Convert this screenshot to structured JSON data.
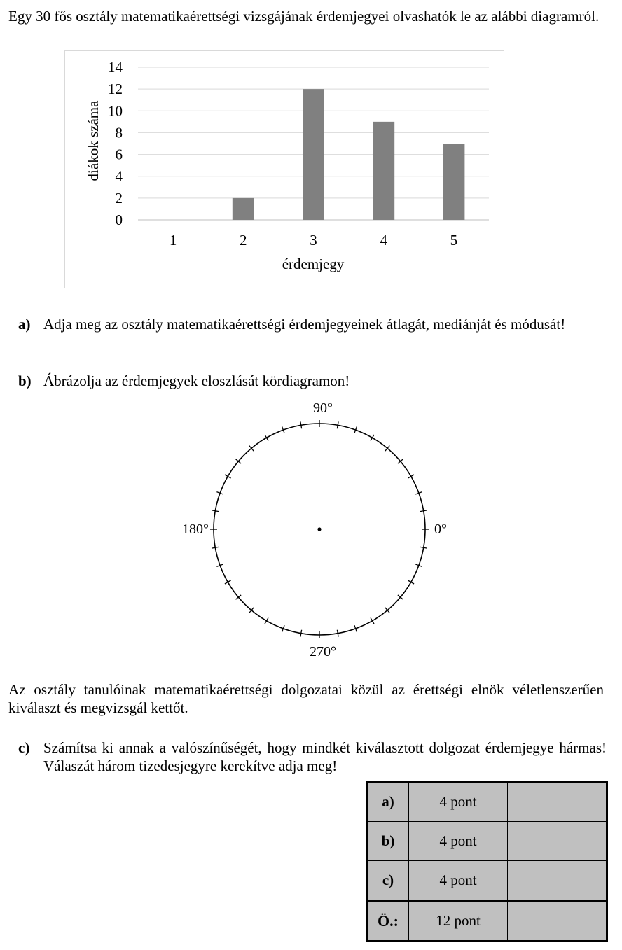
{
  "intro": "Egy 30 fős osztály matematikaérettségi vizsgájának érdemjegyei olvashatók le az alábbi diagramról.",
  "chart_data": {
    "type": "bar",
    "categories": [
      "1",
      "2",
      "3",
      "4",
      "5"
    ],
    "values": [
      0,
      2,
      12,
      9,
      7
    ],
    "title": "",
    "xlabel": "érdemjegy",
    "ylabel": "diákok száma",
    "ylim": [
      0,
      14
    ],
    "yticks": [
      "0",
      "2",
      "4",
      "6",
      "8",
      "10",
      "12",
      "14"
    ],
    "grid": true,
    "bar_color": "#808080"
  },
  "tasks": {
    "a": {
      "label": "a)",
      "text": "Adja meg az osztály matematikaérettségi érdemjegyeinek átlagát, mediánját és módusát!"
    },
    "b": {
      "label": "b)",
      "text": "Ábrázolja az érdemjegyek eloszlását kördiagramon!"
    },
    "c": {
      "label": "c)",
      "text": "Számítsa ki annak a valószínűségét, hogy mindkét kiválasztott dolgozat érdemjegye hármas! Válaszát három tizedesjegyre kerekítve adja meg!"
    }
  },
  "circle_labels": {
    "top": "90°",
    "left": "180°",
    "right": "0°",
    "bottom": "270°"
  },
  "middle_text": "Az osztály tanulóinak matematikaérettségi dolgozatai közül az érettségi elnök véletlenszerűen kiválaszt és megvizsgál kettőt.",
  "score_table": [
    {
      "part": "a)",
      "points": "4 pont",
      "score": ""
    },
    {
      "part": "b)",
      "points": "4 pont",
      "score": ""
    },
    {
      "part": "c)",
      "points": "4 pont",
      "score": ""
    },
    {
      "part": "Ö.:",
      "points": "12 pont",
      "score": ""
    }
  ]
}
